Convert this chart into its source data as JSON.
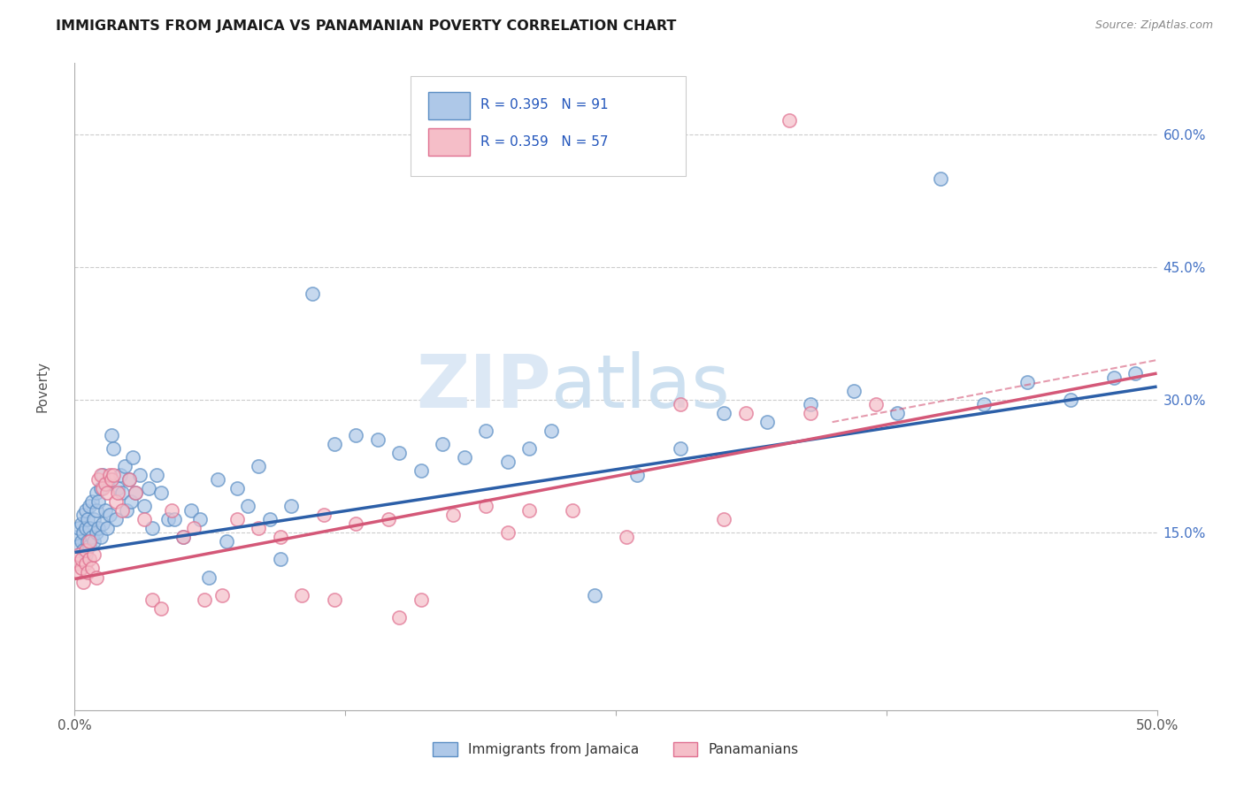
{
  "title": "IMMIGRANTS FROM JAMAICA VS PANAMANIAN POVERTY CORRELATION CHART",
  "source": "Source: ZipAtlas.com",
  "ylabel": "Poverty",
  "ytick_labels": [
    "15.0%",
    "30.0%",
    "45.0%",
    "60.0%"
  ],
  "ytick_values": [
    0.15,
    0.3,
    0.45,
    0.6
  ],
  "xlim": [
    0.0,
    0.5
  ],
  "ylim": [
    -0.05,
    0.68
  ],
  "legend_label1": "Immigrants from Jamaica",
  "legend_label2": "Panamanians",
  "r1": "0.395",
  "n1": "91",
  "r2": "0.359",
  "n2": "57",
  "color_blue": "#aec8e8",
  "color_blue_edge": "#5b8ec4",
  "color_pink": "#f5bec8",
  "color_pink_edge": "#e07090",
  "blue_line_color": "#2c5fa8",
  "pink_line_color": "#d45878",
  "blue_line_x": [
    0.0,
    0.5
  ],
  "blue_line_y": [
    0.128,
    0.315
  ],
  "pink_line_x": [
    0.0,
    0.5
  ],
  "pink_line_y": [
    0.098,
    0.33
  ],
  "blue_scatter_x": [
    0.001,
    0.002,
    0.002,
    0.003,
    0.003,
    0.004,
    0.004,
    0.004,
    0.005,
    0.005,
    0.005,
    0.006,
    0.006,
    0.007,
    0.007,
    0.007,
    0.008,
    0.008,
    0.009,
    0.009,
    0.01,
    0.01,
    0.01,
    0.011,
    0.011,
    0.012,
    0.012,
    0.013,
    0.013,
    0.014,
    0.015,
    0.015,
    0.016,
    0.017,
    0.018,
    0.019,
    0.02,
    0.021,
    0.022,
    0.023,
    0.024,
    0.025,
    0.026,
    0.027,
    0.028,
    0.03,
    0.032,
    0.034,
    0.036,
    0.038,
    0.04,
    0.043,
    0.046,
    0.05,
    0.054,
    0.058,
    0.062,
    0.066,
    0.07,
    0.075,
    0.08,
    0.085,
    0.09,
    0.095,
    0.1,
    0.11,
    0.12,
    0.13,
    0.14,
    0.15,
    0.16,
    0.17,
    0.18,
    0.19,
    0.2,
    0.21,
    0.22,
    0.24,
    0.26,
    0.28,
    0.3,
    0.32,
    0.34,
    0.36,
    0.38,
    0.4,
    0.42,
    0.44,
    0.46,
    0.48,
    0.49
  ],
  "blue_scatter_y": [
    0.145,
    0.135,
    0.155,
    0.14,
    0.16,
    0.13,
    0.15,
    0.17,
    0.125,
    0.155,
    0.175,
    0.14,
    0.165,
    0.135,
    0.155,
    0.18,
    0.145,
    0.185,
    0.14,
    0.165,
    0.15,
    0.175,
    0.195,
    0.155,
    0.185,
    0.145,
    0.2,
    0.16,
    0.215,
    0.175,
    0.155,
    0.205,
    0.17,
    0.26,
    0.245,
    0.165,
    0.2,
    0.215,
    0.195,
    0.225,
    0.175,
    0.21,
    0.185,
    0.235,
    0.195,
    0.215,
    0.18,
    0.2,
    0.155,
    0.215,
    0.195,
    0.165,
    0.165,
    0.145,
    0.175,
    0.165,
    0.1,
    0.21,
    0.14,
    0.2,
    0.18,
    0.225,
    0.165,
    0.12,
    0.18,
    0.42,
    0.25,
    0.26,
    0.255,
    0.24,
    0.22,
    0.25,
    0.235,
    0.265,
    0.23,
    0.245,
    0.265,
    0.08,
    0.215,
    0.245,
    0.285,
    0.275,
    0.295,
    0.31,
    0.285,
    0.55,
    0.295,
    0.32,
    0.3,
    0.325,
    0.33
  ],
  "pink_scatter_x": [
    0.001,
    0.002,
    0.002,
    0.003,
    0.003,
    0.004,
    0.005,
    0.005,
    0.006,
    0.007,
    0.007,
    0.008,
    0.009,
    0.01,
    0.011,
    0.012,
    0.013,
    0.014,
    0.015,
    0.016,
    0.017,
    0.018,
    0.019,
    0.02,
    0.022,
    0.025,
    0.028,
    0.032,
    0.036,
    0.04,
    0.045,
    0.05,
    0.055,
    0.06,
    0.068,
    0.075,
    0.085,
    0.095,
    0.105,
    0.115,
    0.13,
    0.145,
    0.16,
    0.175,
    0.19,
    0.21,
    0.23,
    0.255,
    0.28,
    0.31,
    0.34,
    0.37,
    0.3,
    0.2,
    0.15,
    0.12,
    0.33
  ],
  "pink_scatter_y": [
    0.115,
    0.105,
    0.125,
    0.11,
    0.12,
    0.095,
    0.115,
    0.13,
    0.105,
    0.12,
    0.14,
    0.11,
    0.125,
    0.1,
    0.21,
    0.215,
    0.2,
    0.205,
    0.195,
    0.215,
    0.21,
    0.215,
    0.185,
    0.195,
    0.175,
    0.21,
    0.195,
    0.165,
    0.075,
    0.065,
    0.175,
    0.145,
    0.155,
    0.075,
    0.08,
    0.165,
    0.155,
    0.145,
    0.08,
    0.17,
    0.16,
    0.165,
    0.075,
    0.17,
    0.18,
    0.175,
    0.175,
    0.145,
    0.295,
    0.285,
    0.285,
    0.295,
    0.165,
    0.15,
    0.055,
    0.075,
    0.615
  ]
}
